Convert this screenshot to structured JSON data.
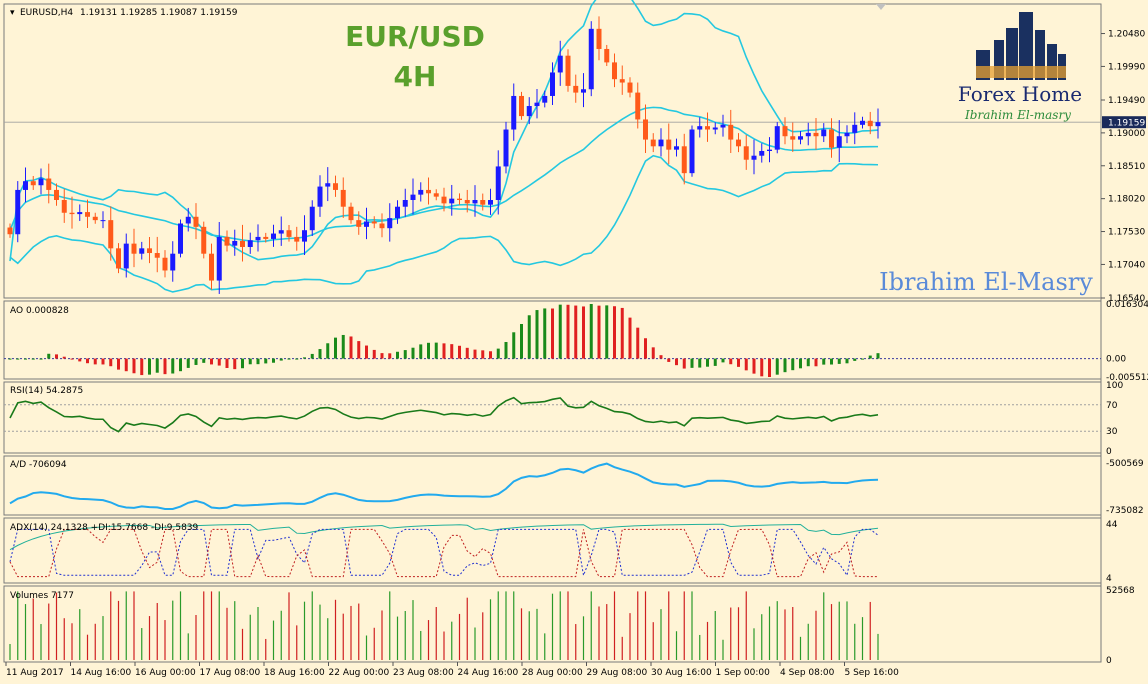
{
  "header": {
    "symbol": "EURUSD,H4",
    "ohlc": "1.19131 1.19285 1.19087 1.19159"
  },
  "overlay_title": {
    "pair": "EUR/USD",
    "timeframe": "4H"
  },
  "watermark": {
    "brand": "Forex Home",
    "author": "Ibrahim El-masry",
    "signature": "Ibrahim El-Masry"
  },
  "colors": {
    "bull": "#1a1aff",
    "bear": "#ff5a1a",
    "bands": "#24c8e0",
    "ao_up": "#1a8a1a",
    "ao_down": "#e02020",
    "rsi": "#1a7a1a",
    "ad": "#22aaee",
    "adx": "#22b09a",
    "pdi": "#2030d0",
    "mdi": "#c02020",
    "volume_up": "#2a9a2a",
    "volume_down": "#d02020"
  },
  "chart_data": [
    {
      "type": "candlestick",
      "title": "EURUSD,H4",
      "yticks": [
        "1.20480",
        "1.19990",
        "1.19490",
        "1.19000",
        "1.18510",
        "1.18020",
        "1.17530",
        "1.17040",
        "1.16540"
      ],
      "ylim": [
        1.1654,
        1.2092
      ],
      "current_price": "1.19159",
      "x_tick_labels": [
        "11 Aug 2017",
        "14 Aug 16:00",
        "16 Aug 00:00",
        "17 Aug 08:00",
        "18 Aug 16:00",
        "22 Aug 00:00",
        "23 Aug 08:00",
        "24 Aug 16:00",
        "28 Aug 00:00",
        "29 Aug 08:00",
        "30 Aug 16:00",
        "1 Sep 00:00",
        "4 Sep 08:00",
        "5 Sep 16:00"
      ],
      "close": [
        1.1749,
        1.1815,
        1.1828,
        1.1822,
        1.1832,
        1.1815,
        1.18,
        1.1781,
        1.1779,
        1.1782,
        1.1775,
        1.177,
        1.177,
        1.1728,
        1.1698,
        1.1735,
        1.172,
        1.1728,
        1.1721,
        1.1714,
        1.1695,
        1.172,
        1.1765,
        1.1775,
        1.176,
        1.172,
        1.168,
        1.1745,
        1.1732,
        1.1739,
        1.173,
        1.174,
        1.1745,
        1.1742,
        1.175,
        1.1755,
        1.1745,
        1.1738,
        1.1755,
        1.179,
        1.182,
        1.1825,
        1.1815,
        1.179,
        1.177,
        1.176,
        1.1768,
        1.1765,
        1.1758,
        1.1773,
        1.179,
        1.18,
        1.1808,
        1.1815,
        1.181,
        1.1805,
        1.1795,
        1.1802,
        1.18,
        1.1795,
        1.18,
        1.1793,
        1.18,
        1.185,
        1.1905,
        1.1955,
        1.1925,
        1.194,
        1.1945,
        1.1955,
        1.199,
        1.2015,
        1.197,
        1.196,
        1.1965,
        1.2055,
        1.2025,
        1.2005,
        1.198,
        1.1975,
        1.196,
        1.192,
        1.189,
        1.188,
        1.189,
        1.1875,
        1.188,
        1.184,
        1.1905,
        1.191,
        1.1905,
        1.1908,
        1.1912,
        1.189,
        1.188,
        1.186,
        1.1866,
        1.1873,
        1.1875,
        1.191,
        1.1895,
        1.189,
        1.1895,
        1.19,
        1.1895,
        1.1905,
        1.1878,
        1.1895,
        1.19,
        1.1912,
        1.1918,
        1.191,
        1.1916
      ],
      "bands": {
        "upper_min": 1.1709,
        "upper_max": 1.2115,
        "middle_min": 1.1738,
        "middle_max": 1.1938,
        "lower_min": 1.1663,
        "lower_max": 1.1866
      }
    },
    {
      "type": "bar",
      "title": "AO 0.000828",
      "yticks": [
        "0.016304",
        "0.00",
        "-0.005512"
      ],
      "ylim": [
        -0.0055,
        0.0163
      ]
    },
    {
      "type": "line",
      "title": "RSI(14) 54.2875",
      "yticks": [
        "100",
        "70",
        "30",
        "0"
      ],
      "ylim": [
        0,
        100
      ],
      "levels": [
        70,
        30
      ]
    },
    {
      "type": "line",
      "title": "A/D -706094",
      "yticks": [
        "-500569",
        "-735082"
      ],
      "ylim": [
        -735082,
        -500569
      ]
    },
    {
      "type": "line",
      "title": "ADX(14) 24.1328 +DI:15.7668 -DI:9.5839",
      "yticks": [
        "44",
        "4"
      ],
      "ylim": [
        4,
        44
      ],
      "series": [
        {
          "name": "ADX"
        },
        {
          "name": "+DI"
        },
        {
          "name": "-DI"
        }
      ]
    },
    {
      "type": "bar",
      "title": "Volumes 7177",
      "yticks": [
        "52568",
        "0"
      ],
      "ylim": [
        0,
        52568
      ]
    }
  ]
}
